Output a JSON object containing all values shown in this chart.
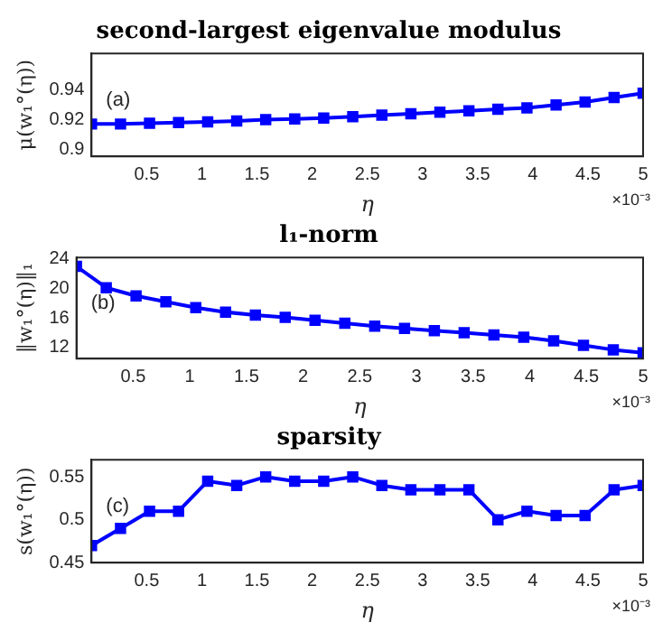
{
  "chart_data": [
    {
      "type": "line",
      "title": "second-largest eigenvalue modulus",
      "xlabel": "η",
      "ylabel": "μ(w₁°(η))",
      "annotations": [
        "(a)",
        "×10⁻³"
      ],
      "x": [
        0,
        0.263,
        0.526,
        0.789,
        1.053,
        1.316,
        1.579,
        1.842,
        2.105,
        2.368,
        2.632,
        2.895,
        3.158,
        3.421,
        3.684,
        3.947,
        4.211,
        4.474,
        4.737,
        5
      ],
      "series": [
        {
          "color": "#0000ff",
          "values": [
            0.917,
            0.917,
            0.9175,
            0.918,
            0.9185,
            0.919,
            0.92,
            0.9205,
            0.921,
            0.922,
            0.923,
            0.924,
            0.925,
            0.926,
            0.927,
            0.928,
            0.93,
            0.932,
            0.935,
            0.938
          ]
        }
      ],
      "xlim": [
        0,
        5
      ],
      "xticks": [
        0.5,
        1,
        1.5,
        2,
        2.5,
        3,
        3.5,
        4,
        4.5,
        5
      ],
      "ylim": [
        0.895,
        0.965
      ],
      "yticks": [
        0.9,
        0.92,
        0.94
      ],
      "grid": false,
      "legend": false,
      "marker": "square",
      "line_style": "solid"
    },
    {
      "type": "line",
      "title": "l₁-norm",
      "xlabel": "η",
      "ylabel": "‖w₁°(η)‖₁",
      "annotations": [
        "(b)",
        "×10⁻³"
      ],
      "x": [
        0,
        0.263,
        0.526,
        0.789,
        1.053,
        1.316,
        1.579,
        1.842,
        2.105,
        2.368,
        2.632,
        2.895,
        3.158,
        3.421,
        3.684,
        3.947,
        4.211,
        4.474,
        4.737,
        5
      ],
      "series": [
        {
          "color": "#0000ff",
          "values": [
            23,
            20.1,
            19,
            18.2,
            17.4,
            16.8,
            16.4,
            16.1,
            15.7,
            15.3,
            14.9,
            14.6,
            14.3,
            14,
            13.7,
            13.4,
            12.9,
            12.3,
            11.7,
            11.3
          ]
        }
      ],
      "xlim": [
        0,
        5
      ],
      "xticks": [
        0.5,
        1,
        1.5,
        2,
        2.5,
        3,
        3.5,
        4,
        4.5,
        5
      ],
      "ylim": [
        10.5,
        24.2
      ],
      "yticks": [
        12,
        16,
        20,
        24
      ],
      "grid": false,
      "legend": false,
      "marker": "square",
      "line_style": "solid"
    },
    {
      "type": "line",
      "title": "sparsity",
      "xlabel": "η",
      "ylabel": "s(w₁°(η))",
      "annotations": [
        "(c)",
        "×10⁻³"
      ],
      "x": [
        0,
        0.263,
        0.526,
        0.789,
        1.053,
        1.316,
        1.579,
        1.842,
        2.105,
        2.368,
        2.632,
        2.895,
        3.158,
        3.421,
        3.684,
        3.947,
        4.211,
        4.474,
        4.737,
        5
      ],
      "series": [
        {
          "color": "#0000ff",
          "values": [
            0.47,
            0.49,
            0.51,
            0.51,
            0.545,
            0.54,
            0.55,
            0.545,
            0.545,
            0.55,
            0.54,
            0.535,
            0.535,
            0.535,
            0.5,
            0.51,
            0.505,
            0.505,
            0.535,
            0.54
          ]
        }
      ],
      "xlim": [
        0,
        5
      ],
      "xticks": [
        0.5,
        1,
        1.5,
        2,
        2.5,
        3,
        3.5,
        4,
        4.5,
        5
      ],
      "ylim": [
        0.45,
        0.57
      ],
      "yticks": [
        0.45,
        0.5,
        0.55
      ],
      "grid": false,
      "legend": false,
      "marker": "square",
      "line_style": "solid"
    }
  ]
}
